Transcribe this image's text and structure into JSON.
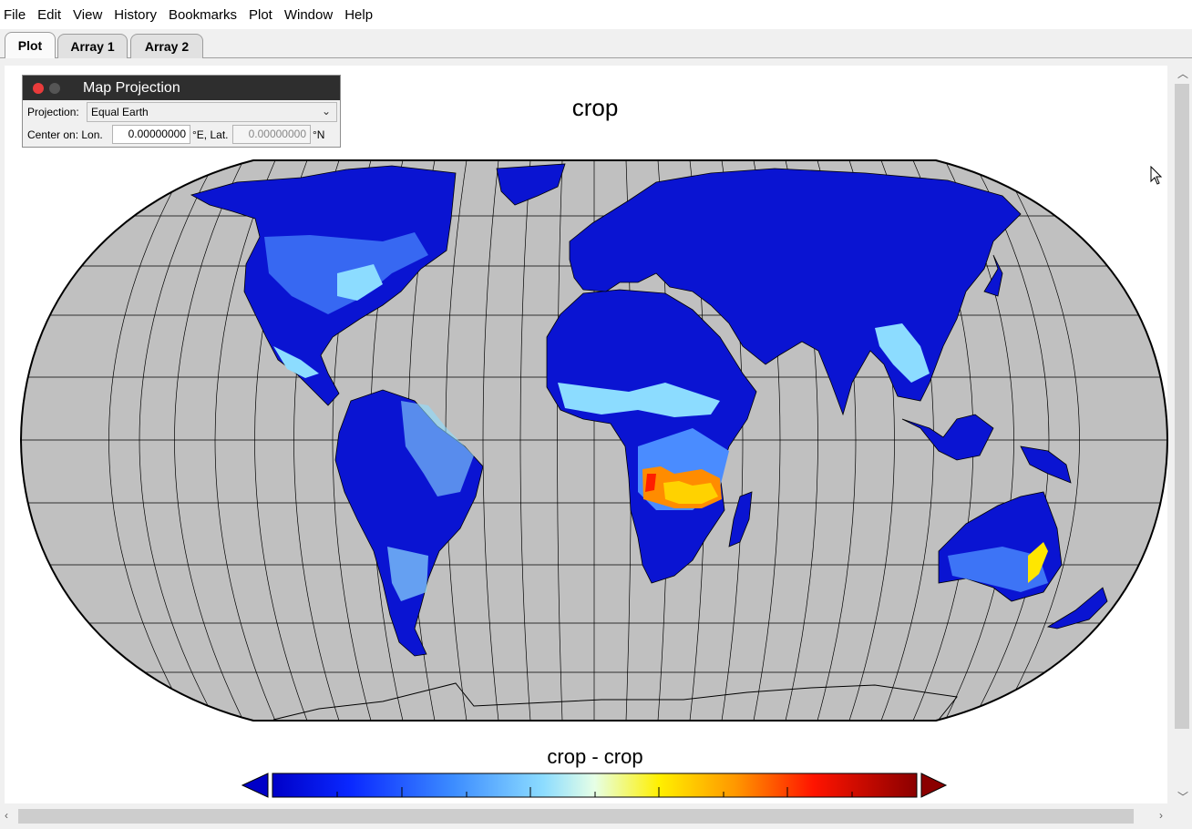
{
  "menu": [
    "File",
    "Edit",
    "View",
    "History",
    "Bookmarks",
    "Plot",
    "Window",
    "Help"
  ],
  "tabs": [
    "Plot",
    "Array 1",
    "Array 2"
  ],
  "panel": {
    "title": "Map Projection",
    "projection_label": "Projection:",
    "projection_value": "Equal Earth",
    "center_label": "Center on: Lon.",
    "lon_value": "0.00000000",
    "lon_unit": "°E, Lat.",
    "lat_value": "0.00000000",
    "lat_unit": "°N"
  },
  "plot": {
    "title": "crop",
    "colorbar_title": "crop - crop"
  },
  "colors": {
    "ocean": "#c0c0c0",
    "land_low": "#0a14d2",
    "colorbar": [
      "#0000c8",
      "#0a28ff",
      "#3c8cff",
      "#8cdcff",
      "#e6ffe6",
      "#fff000",
      "#ff9600",
      "#ff1400",
      "#b40000",
      "#8b0000"
    ]
  }
}
